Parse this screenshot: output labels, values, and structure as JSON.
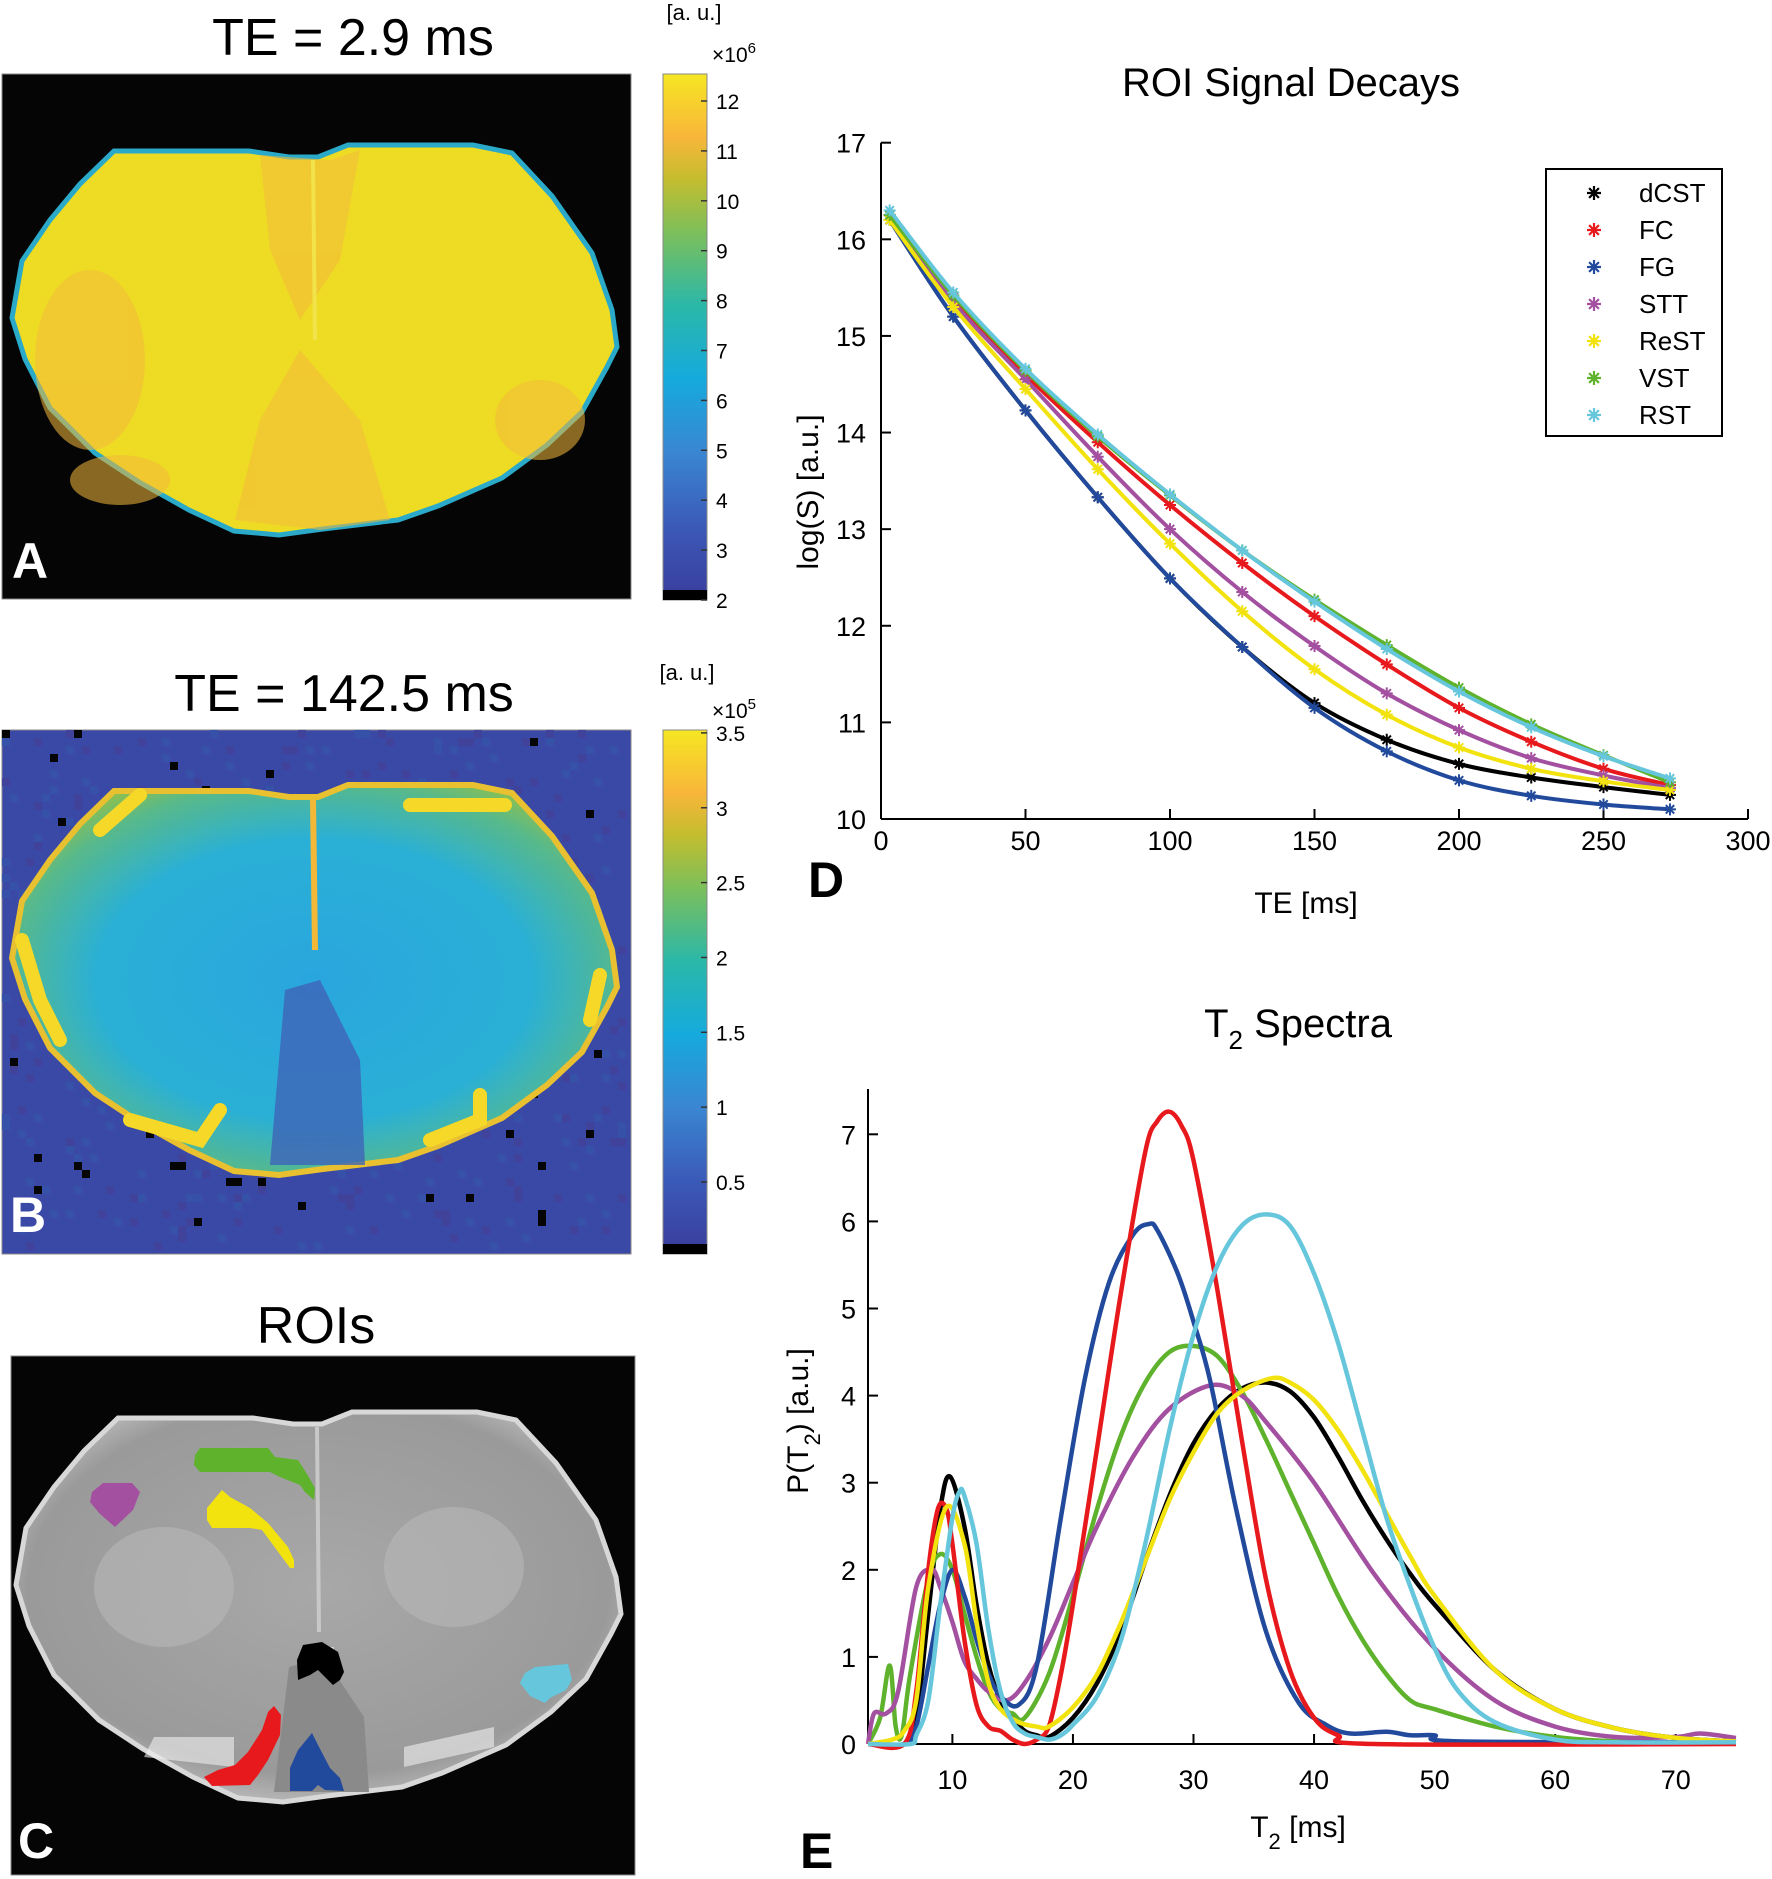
{
  "panels": {
    "A": {
      "label": "A",
      "title": "TE = 2.9 ms",
      "colorbar": {
        "unit": "[a. u.]",
        "multiplier_base": "×10",
        "multiplier_exp": "6",
        "ticks": [
          "2",
          "3",
          "4",
          "5",
          "6",
          "7",
          "8",
          "9",
          "10",
          "11",
          "12"
        ],
        "range": [
          2,
          12.54
        ],
        "colormap": "parula"
      }
    },
    "B": {
      "label": "B",
      "title": "TE = 142.5 ms",
      "colorbar": {
        "unit": "[a. u.]",
        "multiplier_base": "×10",
        "multiplier_exp": "5",
        "ticks": [
          "0.5",
          "1",
          "1.5",
          "2",
          "2.5",
          "3",
          "3.5"
        ],
        "range": [
          0,
          3.52
        ],
        "colormap": "parula"
      }
    },
    "C": {
      "label": "C",
      "title": "ROIs",
      "rois": [
        {
          "name": "dCST",
          "color": "#000000"
        },
        {
          "name": "FC",
          "color": "#e8191c"
        },
        {
          "name": "FG",
          "color": "#224a9c"
        },
        {
          "name": "STT",
          "color": "#a350a0"
        },
        {
          "name": "ReST",
          "color": "#f2e20e"
        },
        {
          "name": "VST",
          "color": "#5eb22c"
        },
        {
          "name": "RST",
          "color": "#66c6dc"
        }
      ]
    }
  },
  "chart_data": [
    {
      "panel_label": "D",
      "type": "line",
      "title": "ROI Signal Decays",
      "xlabel": "TE [ms]",
      "ylabel": "log(S) [a.u.]",
      "xlim": [
        0,
        300
      ],
      "ylim": [
        10,
        17
      ],
      "xticks": [
        "0",
        "50",
        "100",
        "150",
        "200",
        "250",
        "300"
      ],
      "yticks": [
        "10",
        "11",
        "12",
        "13",
        "14",
        "15",
        "16",
        "17"
      ],
      "grid": false,
      "legend": "top-right",
      "marker": "asterisk",
      "x": [
        3,
        25,
        50,
        75,
        100,
        125,
        150,
        175,
        200,
        225,
        250,
        273
      ],
      "series": [
        {
          "name": "dCST",
          "color": "#000000",
          "values": [
            16.2,
            15.2,
            14.23,
            13.33,
            12.49,
            11.78,
            11.2,
            10.82,
            10.57,
            10.43,
            10.33,
            10.25
          ]
        },
        {
          "name": "FC",
          "color": "#e8191c",
          "values": [
            16.25,
            15.4,
            14.6,
            13.9,
            13.25,
            12.65,
            12.1,
            11.6,
            11.15,
            10.8,
            10.52,
            10.35
          ]
        },
        {
          "name": "FG",
          "color": "#224a9c",
          "values": [
            16.2,
            15.2,
            14.23,
            13.33,
            12.49,
            11.78,
            11.15,
            10.7,
            10.4,
            10.24,
            10.15,
            10.1
          ]
        },
        {
          "name": "STT",
          "color": "#a350a0",
          "values": [
            16.25,
            15.35,
            14.55,
            13.75,
            13.0,
            12.35,
            11.79,
            11.3,
            10.92,
            10.63,
            10.45,
            10.32
          ]
        },
        {
          "name": "ReST",
          "color": "#f2e20e",
          "values": [
            16.2,
            15.3,
            14.45,
            13.62,
            12.85,
            12.15,
            11.55,
            11.08,
            10.74,
            10.52,
            10.39,
            10.3
          ]
        },
        {
          "name": "VST",
          "color": "#5eb22c",
          "values": [
            16.25,
            15.42,
            14.64,
            13.96,
            13.35,
            12.78,
            12.27,
            11.8,
            11.36,
            10.98,
            10.66,
            10.38
          ]
        },
        {
          "name": "RST",
          "color": "#66c6dc",
          "values": [
            16.3,
            15.45,
            14.66,
            13.98,
            13.36,
            12.78,
            12.25,
            11.76,
            11.32,
            10.95,
            10.65,
            10.42
          ]
        }
      ]
    },
    {
      "panel_label": "E",
      "type": "line",
      "title": {
        "main": "T",
        "sub": "2",
        "rest": " Spectra"
      },
      "xlabel": {
        "main": "T",
        "sub": "2",
        "rest": " [ms]"
      },
      "ylabel": {
        "main": "P(T",
        "sub": "2",
        "rest": ") [a.u.]"
      },
      "xlim": [
        3,
        75
      ],
      "ylim": [
        0,
        7.5
      ],
      "xticks": [
        "10",
        "20",
        "30",
        "40",
        "50",
        "60",
        "70"
      ],
      "yticks": [
        "0",
        "1",
        "2",
        "3",
        "4",
        "5",
        "6",
        "7"
      ],
      "grid": false,
      "series": [
        {
          "color": "#000000",
          "x": [
            3,
            6,
            7,
            8,
            9,
            9.8,
            11,
            12,
            13,
            14,
            15,
            16,
            17,
            18,
            20,
            22,
            24,
            26,
            28,
            30,
            32,
            34,
            36,
            38,
            40,
            42,
            44,
            46,
            48,
            50,
            55,
            60,
            65,
            70,
            75
          ],
          "y": [
            0,
            0,
            0.3,
            1.5,
            2.7,
            3.07,
            2.5,
            1.6,
            0.9,
            0.5,
            0.3,
            0.15,
            0.1,
            0.08,
            0.3,
            0.7,
            1.3,
            2.1,
            2.85,
            3.45,
            3.85,
            4.08,
            4.15,
            4.05,
            3.75,
            3.3,
            2.8,
            2.35,
            1.95,
            1.6,
            0.85,
            0.4,
            0.18,
            0.07,
            0.03
          ]
        },
        {
          "color": "#5eb22c",
          "x": [
            3,
            4,
            4.8,
            5.3,
            5.8,
            6.5,
            8,
            9,
            10,
            11,
            12,
            13,
            14,
            15,
            16,
            18,
            20,
            22,
            24,
            26,
            28,
            30,
            32,
            34,
            36,
            38,
            40,
            42,
            44,
            46,
            48,
            50,
            55,
            60,
            65,
            70,
            75
          ],
          "y": [
            0,
            0.3,
            0.9,
            0.2,
            0.1,
            0.8,
            1.9,
            2.18,
            2.0,
            1.5,
            1.0,
            0.6,
            0.4,
            0.35,
            0.3,
            0.8,
            1.7,
            2.7,
            3.55,
            4.15,
            4.5,
            4.57,
            4.45,
            4.05,
            3.5,
            2.9,
            2.3,
            1.7,
            1.2,
            0.8,
            0.5,
            0.4,
            0.2,
            0.08,
            0.03,
            0.02,
            0.02
          ]
        },
        {
          "color": "#a350a0",
          "x": [
            3,
            3.5,
            4.5,
            5.5,
            7,
            8.3,
            9,
            10,
            11,
            12,
            13,
            14.5,
            16,
            18,
            20,
            22,
            25,
            28,
            31.5,
            34,
            36,
            40,
            45,
            50,
            55,
            60,
            65,
            70,
            72,
            75
          ],
          "y": [
            0,
            0.35,
            0.35,
            0.6,
            1.8,
            2.0,
            1.8,
            1.4,
            0.95,
            0.75,
            0.6,
            0.5,
            0.7,
            1.2,
            1.85,
            2.5,
            3.3,
            3.85,
            4.12,
            4.0,
            3.7,
            3.0,
            1.95,
            1.1,
            0.5,
            0.2,
            0.08,
            0.08,
            0.12,
            0.07
          ]
        },
        {
          "color": "#224a9c",
          "x": [
            3,
            6,
            7,
            8,
            9,
            10,
            11,
            12,
            13,
            14,
            15.5,
            17,
            19,
            21,
            23,
            25,
            26.3,
            27,
            28.7,
            30,
            31.4,
            33.5,
            36,
            38.7,
            41,
            43,
            46,
            48,
            50,
            52,
            75
          ],
          "y": [
            0,
            0,
            0.2,
            0.9,
            1.6,
            2.0,
            1.7,
            1.2,
            0.8,
            0.55,
            0.45,
            0.9,
            2.6,
            4.2,
            5.3,
            5.85,
            5.97,
            5.9,
            5.4,
            4.85,
            4.16,
            2.72,
            1.3,
            0.48,
            0.22,
            0.12,
            0.14,
            0.1,
            0.1,
            0.03,
            0.02
          ]
        },
        {
          "color": "#e8191c",
          "x": [
            3,
            6,
            7,
            8,
            8.8,
            9.5,
            10,
            11,
            12,
            13,
            14,
            15,
            16,
            17,
            18,
            19,
            20,
            22,
            24,
            26,
            27,
            28,
            29,
            30,
            32,
            34,
            36,
            38,
            40,
            42,
            45,
            75
          ],
          "y": [
            0,
            0,
            0.6,
            2.0,
            2.7,
            2.7,
            2.3,
            1.2,
            0.45,
            0.2,
            0.15,
            0.05,
            0,
            0.05,
            0.2,
            0.8,
            1.6,
            3.4,
            5.2,
            6.8,
            7.15,
            7.26,
            7.1,
            6.7,
            5.2,
            3.5,
            1.9,
            0.85,
            0.3,
            0.1,
            0,
            0
          ]
        },
        {
          "color": "#f2e20e",
          "x": [
            3,
            5,
            6,
            7,
            8,
            9.5,
            11,
            12,
            13,
            14,
            15.5,
            17,
            18,
            20,
            22,
            24,
            26,
            28,
            30,
            32,
            34,
            36.5,
            38,
            40,
            42,
            44,
            46,
            48,
            50,
            55,
            60,
            65,
            70,
            75
          ],
          "y": [
            0,
            0.05,
            0.15,
            0.5,
            1.8,
            2.72,
            2.3,
            1.4,
            0.7,
            0.4,
            0.25,
            0.2,
            0.2,
            0.42,
            0.8,
            1.4,
            2.1,
            2.8,
            3.35,
            3.8,
            4.05,
            4.2,
            4.15,
            3.95,
            3.6,
            3.15,
            2.65,
            2.15,
            1.7,
            0.85,
            0.4,
            0.18,
            0.07,
            0.03
          ]
        },
        {
          "color": "#66c6dc",
          "x": [
            3,
            6.5,
            7,
            8,
            9,
            10,
            10.6,
            11,
            12,
            13,
            14,
            15,
            16,
            17,
            18,
            19,
            20,
            22,
            24,
            26,
            28,
            30,
            32,
            34,
            36,
            38,
            40,
            42,
            44,
            46,
            48,
            50,
            52,
            55,
            60,
            65,
            75
          ],
          "y": [
            0,
            0,
            0.1,
            0.5,
            1.6,
            2.6,
            2.9,
            2.85,
            2.3,
            1.3,
            0.6,
            0.25,
            0.12,
            0.08,
            0.05,
            0.1,
            0.22,
            0.55,
            1.2,
            2.3,
            3.6,
            4.7,
            5.5,
            5.95,
            6.08,
            5.95,
            5.4,
            4.6,
            3.6,
            2.6,
            1.8,
            1.1,
            0.6,
            0.25,
            0.05,
            0.02,
            0.02
          ]
        }
      ]
    }
  ]
}
